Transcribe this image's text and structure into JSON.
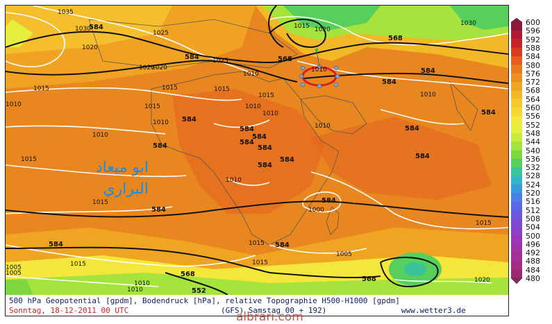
{
  "scale": {
    "labels": [
      "600",
      "596",
      "592",
      "588",
      "584",
      "580",
      "576",
      "572",
      "568",
      "564",
      "560",
      "556",
      "552",
      "548",
      "544",
      "540",
      "536",
      "532",
      "528",
      "524",
      "520",
      "516",
      "512",
      "508",
      "504",
      "500",
      "496",
      "492",
      "488",
      "484",
      "480"
    ],
    "colors": [
      "#8b1a3b",
      "#b01a32",
      "#c7272a",
      "#d93c1f",
      "#e45d1f",
      "#e87a1e",
      "#ec901f",
      "#f0a522",
      "#f3b828",
      "#f6c92d",
      "#f7d832",
      "#f4e63a",
      "#e6ee3d",
      "#c8eb3c",
      "#a5e43c",
      "#7cd83e",
      "#57cf5d",
      "#3bc49a",
      "#33b6c6",
      "#3a9bde",
      "#4b81e5",
      "#5b6ae4",
      "#6b58dc",
      "#7c4ad2",
      "#8c3fc6",
      "#9a37b8",
      "#a232a8",
      "#a62f97",
      "#a42d83",
      "#9a2a70",
      "#8a2760"
    ]
  },
  "map_labels": {
    "geopotential": [
      "584",
      "584",
      "584",
      "584",
      "584",
      "584",
      "584",
      "584",
      "584",
      "584",
      "584",
      "584",
      "584",
      "584",
      "584",
      "584",
      "584",
      "584",
      "584",
      "568",
      "568",
      "568",
      "568",
      "552"
    ],
    "pressure": [
      "1035",
      "1030",
      "1025",
      "1020",
      "1025",
      "1020",
      "1015",
      "1015",
      "1010",
      "1010",
      "1015",
      "1010",
      "1010",
      "1015",
      "1015",
      "1010",
      "1010",
      "1005",
      "1000",
      "1005",
      "1015",
      "1015",
      "1010",
      "1010",
      "1010",
      "1030",
      "1020",
      "1015",
      "1015",
      "1020",
      "1010",
      "1015",
      "1015",
      "1010",
      "1005",
      "1015",
      "1020",
      "1010"
    ]
  },
  "arabic_text": [
    "ابو ميعاد",
    "البراري"
  ],
  "caption": {
    "line1": "500 hPa Geopotential [gpdm], Bodendruck [hPa], relative Topographie H500-H1000 [gpdm]",
    "date": "Sonntag, 18-12-2011  00 UTC",
    "model": "(GFS)  Samstag 00 + 192)",
    "source": "www.wetter3.de"
  },
  "watermark": "albrari.com"
}
